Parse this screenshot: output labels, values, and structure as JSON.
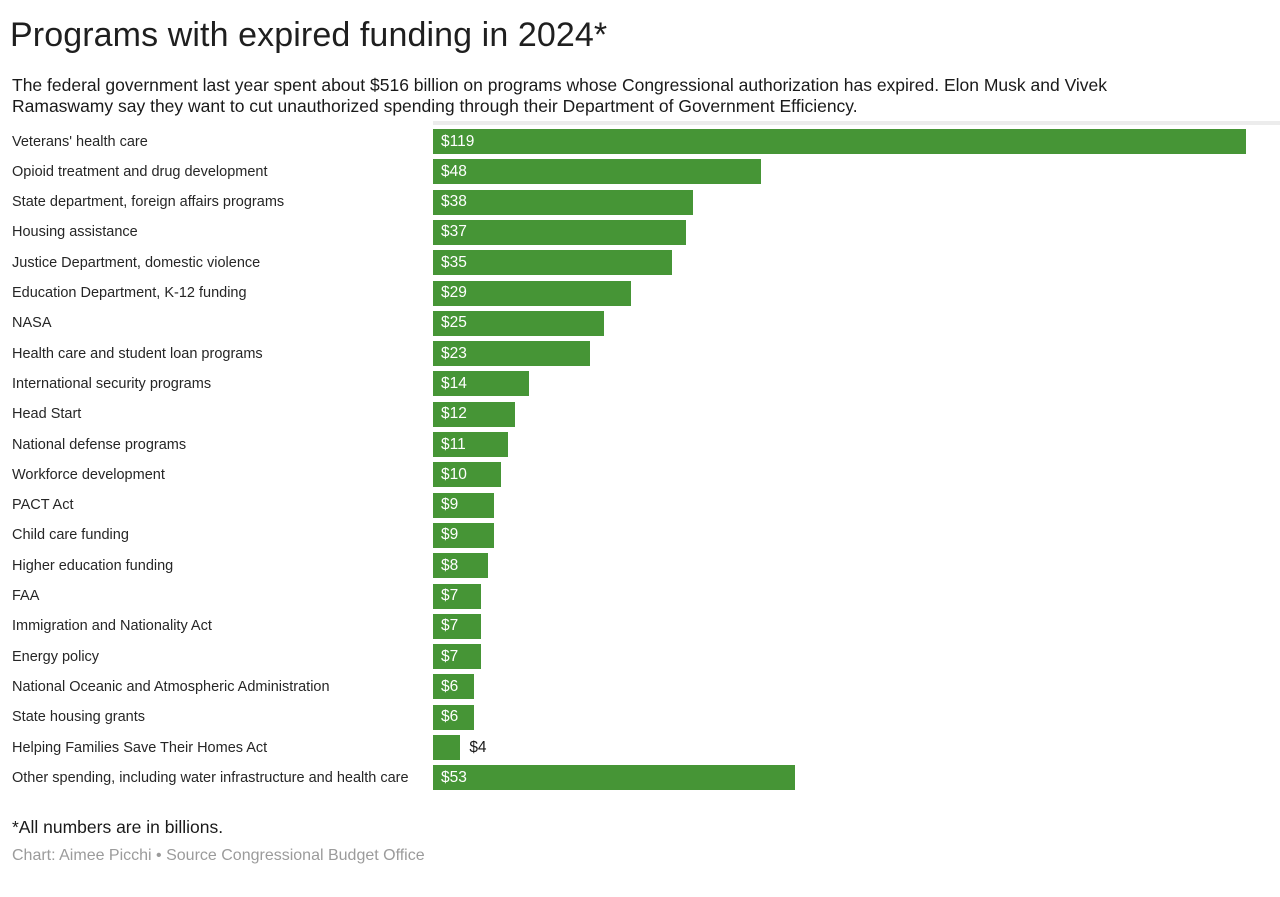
{
  "header": {
    "title": "Programs with expired funding in 2024*",
    "subtitle": "The federal government last year spent about $516 billion on programs whose Congressional authorization has expired. Elon Musk and Vivek Ramaswamy say they want to cut unauthorized spending through their Department of Government Efficiency."
  },
  "footer": {
    "footnote": "*All numbers are in billions.",
    "credit": "Chart: Aimee Picchi • Source Congressional Budget Office"
  },
  "chart_data": {
    "type": "bar",
    "orientation": "horizontal",
    "title": "Programs with expired funding in 2024*",
    "xlabel": "",
    "ylabel": "",
    "xlim": [
      0,
      119
    ],
    "grid": false,
    "legend": false,
    "bar_color": "#469536",
    "value_prefix": "$",
    "units": "billions USD",
    "categories": [
      "Veterans' health care",
      "Opioid treatment and drug development",
      "State department, foreign affairs programs",
      "Housing assistance",
      "Justice Department, domestic violence",
      "Education Department, K-12 funding",
      "NASA",
      "Health care and student loan programs",
      "International security programs",
      "Head Start",
      "National defense programs",
      "Workforce development",
      "PACT Act",
      "Child care funding",
      "Higher education funding",
      "FAA",
      "Immigration and Nationality Act",
      "Energy policy",
      "National Oceanic and Atmospheric Administration",
      "State housing grants",
      "Helping Families Save Their Homes Act",
      "Other spending, including water infrastructure and health care"
    ],
    "values": [
      119,
      48,
      38,
      37,
      35,
      29,
      25,
      23,
      14,
      12,
      11,
      10,
      9,
      9,
      8,
      7,
      7,
      7,
      6,
      6,
      4,
      53
    ],
    "rows": [
      {
        "category": "Veterans' health care",
        "value": 119,
        "label": "$119"
      },
      {
        "category": "Opioid treatment and drug development",
        "value": 48,
        "label": "$48"
      },
      {
        "category": "State department, foreign affairs programs",
        "value": 38,
        "label": "$38"
      },
      {
        "category": "Housing assistance",
        "value": 37,
        "label": "$37"
      },
      {
        "category": "Justice Department, domestic violence",
        "value": 35,
        "label": "$35"
      },
      {
        "category": "Education Department, K-12 funding",
        "value": 29,
        "label": "$29"
      },
      {
        "category": "NASA",
        "value": 25,
        "label": "$25"
      },
      {
        "category": "Health care and student loan programs",
        "value": 23,
        "label": "$23"
      },
      {
        "category": "International security programs",
        "value": 14,
        "label": "$14"
      },
      {
        "category": "Head Start",
        "value": 12,
        "label": "$12"
      },
      {
        "category": "National defense programs",
        "value": 11,
        "label": "$11"
      },
      {
        "category": "Workforce development",
        "value": 10,
        "label": "$10"
      },
      {
        "category": "PACT Act",
        "value": 9,
        "label": "$9"
      },
      {
        "category": "Child care funding",
        "value": 9,
        "label": "$9"
      },
      {
        "category": "Higher education funding",
        "value": 8,
        "label": "$8"
      },
      {
        "category": "FAA",
        "value": 7,
        "label": "$7"
      },
      {
        "category": "Immigration and Nationality Act",
        "value": 7,
        "label": "$7"
      },
      {
        "category": "Energy policy",
        "value": 7,
        "label": "$7"
      },
      {
        "category": "National Oceanic and Atmospheric Administration",
        "value": 6,
        "label": "$6"
      },
      {
        "category": "State housing grants",
        "value": 6,
        "label": "$6"
      },
      {
        "category": "Helping Families Save Their Homes Act",
        "value": 4,
        "label": "$4",
        "label_outside": true
      },
      {
        "category": "Other spending, including water infrastructure and health care",
        "value": 53,
        "label": "$53"
      }
    ]
  }
}
